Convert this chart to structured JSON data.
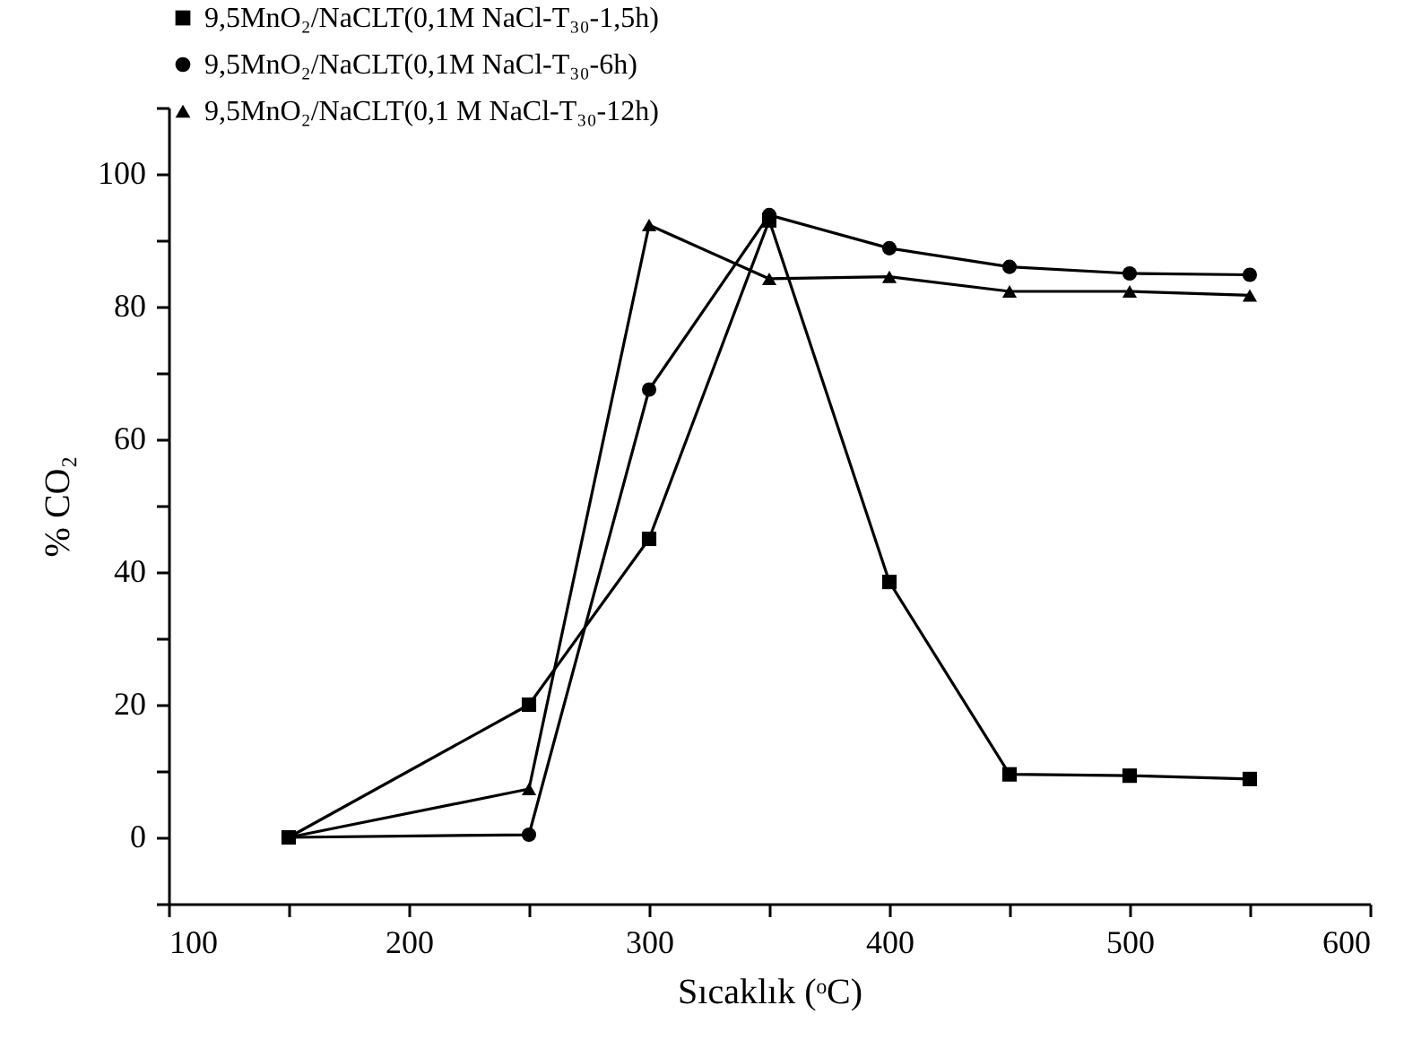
{
  "chart_data": {
    "type": "line",
    "xlabel": "Sıcaklık (ᵒC)",
    "ylabel": "% CO₂",
    "x": [
      150,
      250,
      300,
      350,
      400,
      450,
      500,
      550
    ],
    "series": [
      {
        "name": "9,5MnO₂/NaCLT(0,1M NaCl-T₃₀-1,5h)",
        "color": "#000000",
        "marker": "square",
        "values": [
          0,
          20,
          45,
          93,
          38.5,
          9.5,
          9.3,
          8.8
        ]
      },
      {
        "name": "9,5MnO₂/NaCLT(0,1M NaCl-T₃₀-6h)",
        "color": "#000000",
        "marker": "circle",
        "values": [
          0,
          0.4,
          67.5,
          93.8,
          88.8,
          86,
          85,
          84.8
        ]
      },
      {
        "name": "9,5MnO₂/NaCLT(0,1 M NaCl-T₃₀-12h)",
        "color": "#000000",
        "marker": "triangle",
        "values": [
          0,
          7.3,
          92.3,
          84.2,
          84.5,
          82.3,
          82.3,
          81.7
        ]
      }
    ],
    "xlim": [
      100,
      600
    ],
    "xticks": [
      100,
      {
        "value": 150,
        "label": null
      },
      200,
      {
        "value": 250,
        "label": null
      },
      300,
      {
        "value": 350,
        "label": null
      },
      400,
      {
        "value": 450,
        "label": null
      },
      500,
      {
        "value": 550,
        "label": null
      },
      600
    ],
    "ylim": [
      -10,
      110
    ],
    "yticks": [
      {
        "value": -10,
        "label": null
      },
      0,
      {
        "value": 10,
        "label": null
      },
      20,
      {
        "value": 30,
        "label": null
      },
      40,
      {
        "value": 50,
        "label": null
      },
      60,
      {
        "value": 70,
        "label": null
      },
      80,
      {
        "value": 90,
        "label": null
      },
      100,
      {
        "value": 110,
        "label": null
      }
    ],
    "grid": false,
    "legend": "top left",
    "line_style": "solid"
  }
}
